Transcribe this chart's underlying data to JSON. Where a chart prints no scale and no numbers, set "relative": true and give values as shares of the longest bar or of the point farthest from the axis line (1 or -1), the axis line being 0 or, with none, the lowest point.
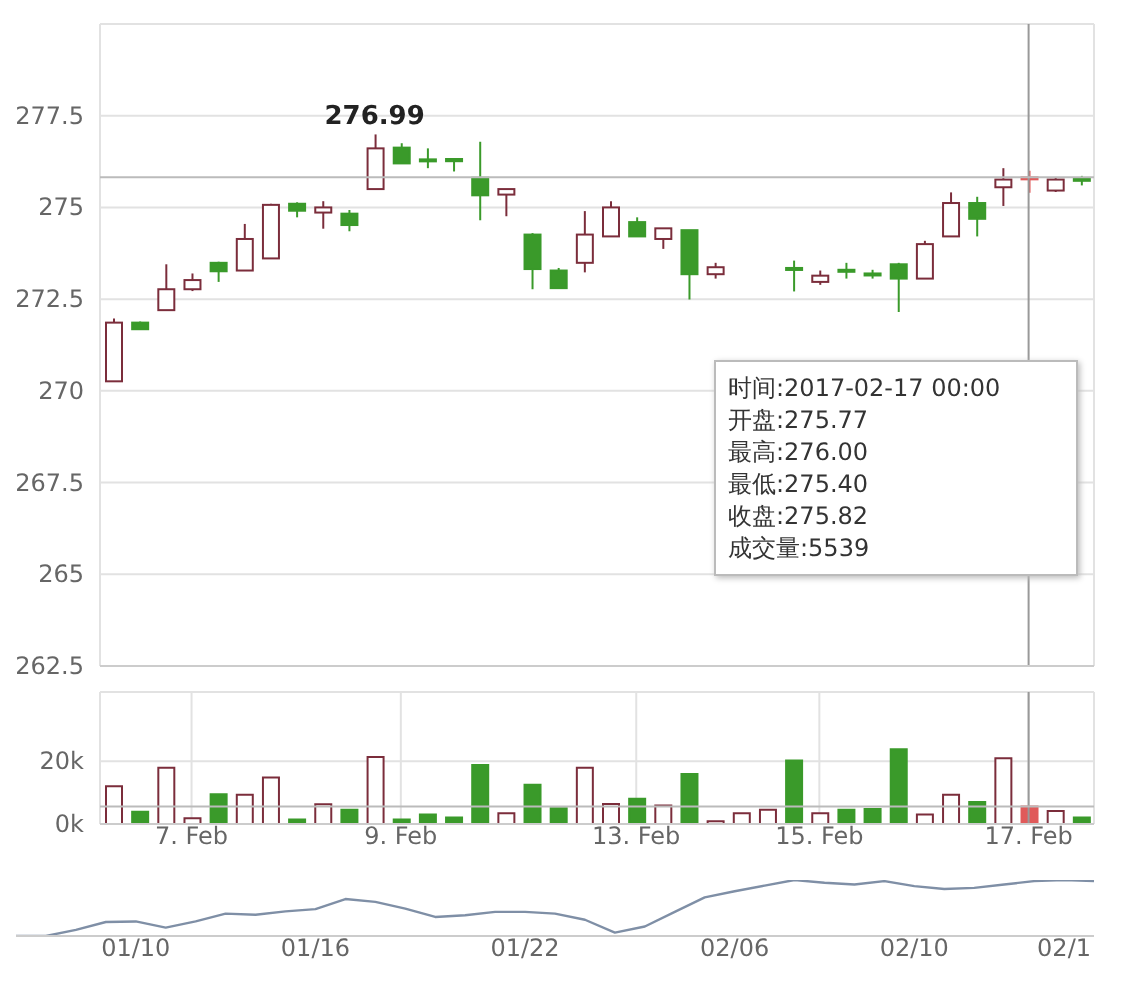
{
  "chart_data": [
    {
      "type": "candlestick",
      "tick_labels": "y",
      "grid": true,
      "categories": [
        null,
        null,
        null,
        "7. Feb",
        null,
        null,
        null,
        null,
        null,
        null,
        null,
        "9. Feb",
        null,
        null,
        null,
        null,
        null,
        null,
        null,
        null,
        "13. Feb",
        null,
        null,
        null,
        null,
        null,
        null,
        "15. Feb",
        null,
        null,
        null,
        null,
        null,
        null,
        null,
        "17. Feb",
        null,
        null
      ],
      "colors": [
        "#ffffff",
        "#3a9a2a",
        "#ffffff",
        "#ffffff",
        "#3a9a2a",
        "#ffffff",
        "#ffffff",
        "#3a9a2a",
        "#ffffff",
        "#3a9a2a",
        "#ffffff",
        "#3a9a2a",
        "#3a9a2a",
        "#3a9a2a",
        "#3a9a2a",
        "#ffffff",
        "#3a9a2a",
        "#3a9a2a",
        "#ffffff",
        "#ffffff",
        "#3a9a2a",
        "#ffffff",
        "#3a9a2a",
        "#ffffff",
        "#ffffff",
        "#ffffff",
        "#3a9a2a",
        "#ffffff",
        "#3a9a2a",
        "#3a9a2a",
        "#3a9a2a",
        "#ffffff",
        "#ffffff",
        "#3a9a2a",
        "#ffffff",
        "#e05a5a",
        "#ffffff",
        "#3a9a2a"
      ],
      "ohlc": [
        [
          270.26,
          271.97,
          270.24,
          271.86
        ],
        [
          271.86,
          271.89,
          271.66,
          271.68
        ],
        [
          272.2,
          273.45,
          272.18,
          272.77
        ],
        [
          272.77,
          273.2,
          272.72,
          273.02
        ],
        [
          273.49,
          273.52,
          272.97,
          273.26
        ],
        [
          273.28,
          274.55,
          273.28,
          274.14
        ],
        [
          273.61,
          275.1,
          273.6,
          275.07
        ],
        [
          275.1,
          275.14,
          274.73,
          274.91
        ],
        [
          274.86,
          275.17,
          274.42,
          275.0
        ],
        [
          274.83,
          274.93,
          274.35,
          274.52
        ],
        [
          275.5,
          276.99,
          275.5,
          276.61
        ],
        [
          276.63,
          276.75,
          276.2,
          276.2
        ],
        [
          276.31,
          276.61,
          276.07,
          276.29
        ],
        [
          276.32,
          276.32,
          275.98,
          276.26
        ],
        [
          275.81,
          276.79,
          274.65,
          275.33
        ],
        [
          275.35,
          275.5,
          274.76,
          275.5
        ],
        [
          274.26,
          274.3,
          272.77,
          273.32
        ],
        [
          273.28,
          273.35,
          272.8,
          272.8
        ],
        [
          273.49,
          274.9,
          273.23,
          274.26
        ],
        [
          274.21,
          275.17,
          274.21,
          275.0
        ],
        [
          274.6,
          274.73,
          274.21,
          274.21
        ],
        [
          274.14,
          274.43,
          273.87,
          274.43
        ],
        [
          274.38,
          274.38,
          272.49,
          273.18
        ],
        [
          273.18,
          273.49,
          273.06,
          273.37
        ],
        null,
        null,
        [
          273.35,
          273.55,
          272.71,
          273.3
        ],
        [
          272.97,
          273.28,
          272.89,
          273.14
        ],
        [
          273.3,
          273.49,
          273.06,
          273.28
        ],
        [
          273.2,
          273.3,
          273.06,
          273.18
        ],
        [
          273.45,
          273.49,
          272.15,
          273.06
        ],
        [
          273.06,
          274.09,
          273.06,
          274.0
        ],
        [
          274.21,
          275.41,
          274.21,
          275.12
        ],
        [
          275.12,
          275.29,
          274.21,
          274.69
        ],
        [
          275.55,
          276.07,
          275.04,
          275.76
        ],
        [
          275.77,
          276.0,
          275.4,
          275.82
        ],
        [
          275.46,
          275.81,
          275.42,
          275.76
        ],
        [
          275.78,
          275.86,
          275.6,
          275.74
        ]
      ],
      "ylim": [
        262.5,
        280
      ],
      "yticks": [
        262.5,
        265,
        267.5,
        270,
        272.5,
        275,
        277.5
      ],
      "ref_lines": [
        {
          "axis": "x",
          "value": "17. Feb",
          "color": "#999999"
        },
        {
          "axis": "y",
          "value": 275.82,
          "color": "#bbbbbb"
        }
      ],
      "annotations": [
        {
          "text": "276.99",
          "y": 276.99
        },
        "时间:2017-02-17 00:00",
        "开盘:275.77",
        "最高:276.00",
        "最低:275.40",
        "收盘:275.82",
        "成交量:5539"
      ]
    },
    {
      "type": "bar",
      "grid": true,
      "categories": [
        null,
        null,
        null,
        "7. Feb",
        null,
        null,
        null,
        null,
        null,
        null,
        null,
        "9. Feb",
        null,
        null,
        null,
        null,
        null,
        null,
        null,
        null,
        "13. Feb",
        null,
        null,
        null,
        null,
        null,
        null,
        "15. Feb",
        null,
        null,
        null,
        null,
        null,
        null,
        null,
        "17. Feb",
        null,
        null
      ],
      "values": [
        12000,
        3900,
        17900,
        1800,
        9500,
        9300,
        14800,
        1400,
        6300,
        4500,
        21300,
        1400,
        3000,
        2100,
        18800,
        3400,
        12500,
        5000,
        17900,
        6400,
        8000,
        5900,
        15900,
        900,
        3400,
        4500,
        20200,
        3400,
        4500,
        4800,
        23800,
        3000,
        9300,
        7000,
        20900,
        5539,
        4100,
        2100
      ],
      "colors": [
        "#ffffff",
        "#3a9a2a",
        "#ffffff",
        "#ffffff",
        "#3a9a2a",
        "#ffffff",
        "#ffffff",
        "#3a9a2a",
        "#ffffff",
        "#3a9a2a",
        "#ffffff",
        "#3a9a2a",
        "#3a9a2a",
        "#3a9a2a",
        "#3a9a2a",
        "#ffffff",
        "#3a9a2a",
        "#3a9a2a",
        "#ffffff",
        "#ffffff",
        "#3a9a2a",
        "#ffffff",
        "#3a9a2a",
        "#ffffff",
        "#ffffff",
        "#ffffff",
        "#3a9a2a",
        "#ffffff",
        "#3a9a2a",
        "#3a9a2a",
        "#3a9a2a",
        "#ffffff",
        "#ffffff",
        "#3a9a2a",
        "#ffffff",
        "#e05a5a",
        "#ffffff",
        "#3a9a2a"
      ],
      "ylim": [
        0,
        42000
      ],
      "yticks": [
        {
          "value": 0,
          "label": "0k"
        },
        {
          "value": 20000,
          "label": "20k"
        }
      ],
      "ref_lines": [
        {
          "axis": "x",
          "value": "17. Feb",
          "color": "#999999"
        },
        {
          "axis": "y",
          "value": 5539,
          "color": "#bbbbbb"
        }
      ]
    },
    {
      "type": "line",
      "relative": true,
      "categories": [
        null,
        null,
        null,
        null,
        "01/10",
        null,
        null,
        null,
        null,
        null,
        "01/16",
        null,
        null,
        null,
        null,
        null,
        null,
        "01/22",
        null,
        null,
        null,
        null,
        null,
        null,
        "02/06",
        null,
        null,
        null,
        null,
        null,
        "02/10",
        null,
        null,
        null,
        null,
        "02/1",
        null
      ],
      "series": [
        {
          "color": "#7f8fa6",
          "values": [
            0,
            0,
            0.11,
            0.25,
            0.26,
            0.15,
            0.26,
            0.4,
            0.38,
            0.44,
            0.48,
            0.66,
            0.61,
            0.49,
            0.34,
            0.37,
            0.43,
            0.43,
            0.4,
            0.29,
            0.06,
            0.17,
            0.43,
            0.69,
            0.8,
            0.9,
            1,
            0.95,
            0.92,
            0.98,
            0.89,
            0.84,
            0.86,
            0.92,
            0.98,
            1,
            0.98
          ]
        }
      ]
    }
  ]
}
